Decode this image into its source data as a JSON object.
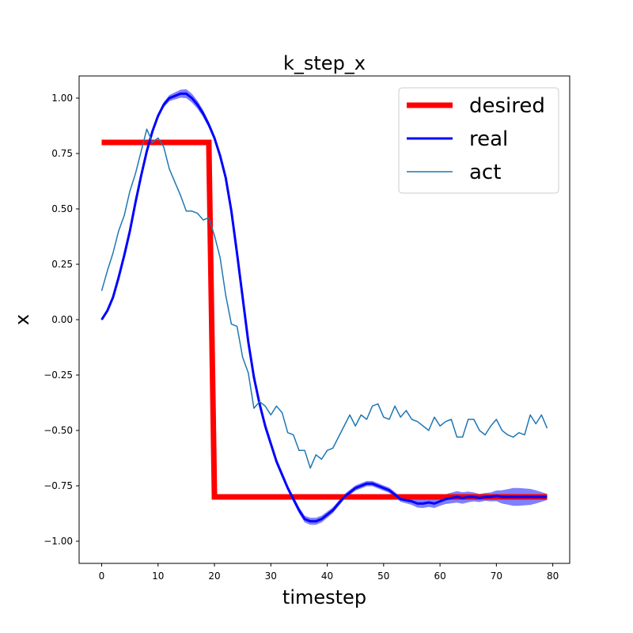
{
  "chart_data": {
    "type": "line",
    "title": "k_step_x",
    "xlabel": "timestep",
    "ylabel": "x",
    "xlim": [
      -4,
      83
    ],
    "ylim": [
      -1.1,
      1.1
    ],
    "xticks": [
      0,
      10,
      20,
      30,
      40,
      50,
      60,
      70,
      80
    ],
    "xtick_labels": [
      "0",
      "10",
      "20",
      "30",
      "40",
      "50",
      "60",
      "70",
      "80"
    ],
    "yticks": [
      1.0,
      0.75,
      0.5,
      0.25,
      0.0,
      -0.25,
      -0.5,
      -0.75,
      -1.0
    ],
    "ytick_labels": [
      "1.00",
      "0.75",
      "0.50",
      "0.25",
      "0.00",
      "−0.25",
      "−0.50",
      "−0.75",
      "−1.00"
    ],
    "grid": false,
    "legend_position": "top-right",
    "series": [
      {
        "name": "desired",
        "color": "#ff0000",
        "x": [
          0,
          19,
          20,
          79
        ],
        "y": [
          0.8,
          0.8,
          -0.8,
          -0.8
        ]
      },
      {
        "name": "real",
        "color": "#0000ff",
        "x": [
          0,
          1,
          2,
          3,
          4,
          5,
          6,
          7,
          8,
          9,
          10,
          11,
          12,
          13,
          14,
          15,
          16,
          17,
          18,
          19,
          20,
          21,
          22,
          23,
          24,
          25,
          26,
          27,
          28,
          29,
          30,
          31,
          32,
          33,
          34,
          35,
          36,
          37,
          38,
          39,
          40,
          41,
          42,
          43,
          44,
          45,
          46,
          47,
          48,
          49,
          50,
          51,
          52,
          53,
          54,
          55,
          56,
          57,
          58,
          59,
          60,
          61,
          62,
          63,
          64,
          65,
          66,
          67,
          68,
          69,
          70,
          71,
          72,
          73,
          74,
          75,
          76,
          77,
          78,
          79
        ],
        "y": [
          0.0,
          0.04,
          0.1,
          0.19,
          0.29,
          0.4,
          0.53,
          0.65,
          0.76,
          0.85,
          0.92,
          0.97,
          1.0,
          1.01,
          1.02,
          1.02,
          1.0,
          0.97,
          0.93,
          0.88,
          0.82,
          0.74,
          0.64,
          0.49,
          0.3,
          0.1,
          -0.1,
          -0.26,
          -0.38,
          -0.48,
          -0.56,
          -0.64,
          -0.7,
          -0.76,
          -0.81,
          -0.86,
          -0.9,
          -0.91,
          -0.91,
          -0.9,
          -0.88,
          -0.86,
          -0.83,
          -0.8,
          -0.78,
          -0.76,
          -0.75,
          -0.74,
          -0.74,
          -0.75,
          -0.76,
          -0.77,
          -0.79,
          -0.81,
          -0.815,
          -0.82,
          -0.83,
          -0.83,
          -0.825,
          -0.83,
          -0.82,
          -0.81,
          -0.805,
          -0.8,
          -0.805,
          -0.8,
          -0.8,
          -0.805,
          -0.8,
          -0.8,
          -0.795,
          -0.8,
          -0.8,
          -0.8,
          -0.8,
          -0.8,
          -0.8,
          -0.8,
          -0.8,
          -0.8
        ],
        "band": [
          0.005,
          0.005,
          0.005,
          0.006,
          0.006,
          0.007,
          0.008,
          0.009,
          0.01,
          0.01,
          0.011,
          0.012,
          0.014,
          0.016,
          0.018,
          0.02,
          0.02,
          0.018,
          0.016,
          0.014,
          0.012,
          0.012,
          0.012,
          0.013,
          0.014,
          0.016,
          0.018,
          0.02,
          0.02,
          0.018,
          0.016,
          0.014,
          0.013,
          0.012,
          0.013,
          0.014,
          0.015,
          0.016,
          0.016,
          0.015,
          0.014,
          0.013,
          0.012,
          0.012,
          0.012,
          0.012,
          0.012,
          0.012,
          0.012,
          0.012,
          0.012,
          0.012,
          0.012,
          0.012,
          0.014,
          0.016,
          0.018,
          0.02,
          0.02,
          0.02,
          0.02,
          0.022,
          0.024,
          0.026,
          0.026,
          0.024,
          0.02,
          0.018,
          0.018,
          0.02,
          0.024,
          0.03,
          0.035,
          0.04,
          0.04,
          0.038,
          0.036,
          0.03,
          0.022,
          0.014
        ]
      },
      {
        "name": "act",
        "color": "#1f77b4",
        "x": [
          0,
          1,
          2,
          3,
          4,
          5,
          6,
          7,
          8,
          9,
          10,
          11,
          12,
          13,
          14,
          15,
          16,
          17,
          18,
          19,
          20,
          21,
          22,
          23,
          24,
          25,
          26,
          27,
          28,
          29,
          30,
          31,
          32,
          33,
          34,
          35,
          36,
          37,
          38,
          39,
          40,
          41,
          42,
          43,
          44,
          45,
          46,
          47,
          48,
          49,
          50,
          51,
          52,
          53,
          54,
          55,
          56,
          57,
          58,
          59,
          60,
          61,
          62,
          63,
          64,
          65,
          66,
          67,
          68,
          69,
          70,
          71,
          72,
          73,
          74,
          75,
          76,
          77,
          78,
          79
        ],
        "y": [
          0.13,
          0.22,
          0.3,
          0.4,
          0.47,
          0.58,
          0.66,
          0.76,
          0.86,
          0.8,
          0.82,
          0.78,
          0.68,
          0.62,
          0.56,
          0.49,
          0.49,
          0.48,
          0.45,
          0.46,
          0.38,
          0.28,
          0.11,
          -0.02,
          -0.03,
          -0.17,
          -0.24,
          -0.4,
          -0.37,
          -0.39,
          -0.43,
          -0.39,
          -0.42,
          -0.51,
          -0.52,
          -0.59,
          -0.59,
          -0.67,
          -0.61,
          -0.63,
          -0.59,
          -0.58,
          -0.53,
          -0.48,
          -0.43,
          -0.48,
          -0.43,
          -0.45,
          -0.39,
          -0.38,
          -0.44,
          -0.45,
          -0.39,
          -0.44,
          -0.41,
          -0.45,
          -0.46,
          -0.48,
          -0.5,
          -0.44,
          -0.48,
          -0.46,
          -0.45,
          -0.53,
          -0.53,
          -0.45,
          -0.45,
          -0.5,
          -0.52,
          -0.48,
          -0.45,
          -0.5,
          -0.52,
          -0.53,
          -0.51,
          -0.52,
          -0.43,
          -0.47,
          -0.43,
          -0.49
        ]
      }
    ]
  }
}
